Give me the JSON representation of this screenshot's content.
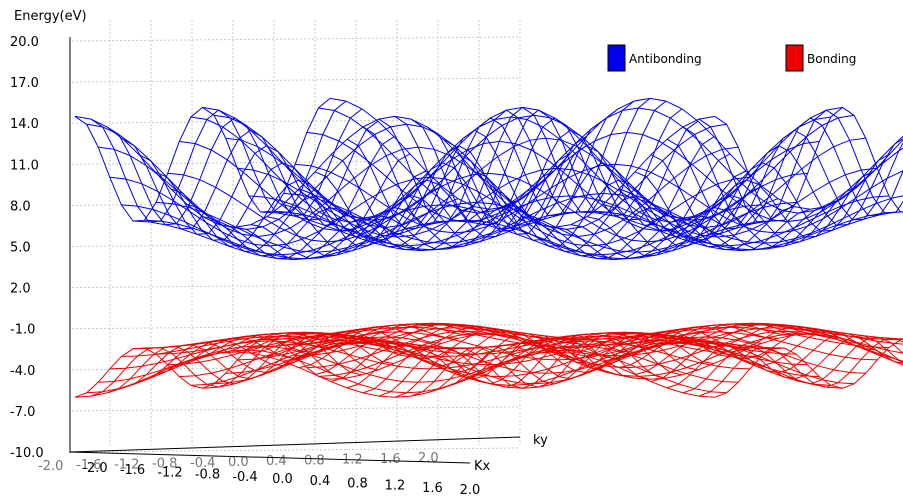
{
  "chart_data": {
    "type": "surface",
    "y_axis_title": "Energy(eV)",
    "zlim": [
      -10.0,
      20.0
    ],
    "z_ticks": [
      "20.0",
      "17.0",
      "14.0",
      "11.0",
      "8.0",
      "5.0",
      "2.0",
      "-1.0",
      "-4.0",
      "-7.0",
      "-10.0"
    ],
    "axis_kx_label": "Kx",
    "axis_ky_label": "ky",
    "kx_ticks": [
      "-2.0",
      "-1.6",
      "-1.2",
      "-0.8",
      "-0.4",
      "0.0",
      "0.4",
      "0.8",
      "1.2",
      "1.6",
      "2.0"
    ],
    "ky_ticks": [
      "-2.0",
      "-1.6",
      "-1.2",
      "-0.8",
      "-0.4",
      "0.0",
      "0.4",
      "0.8",
      "1.2",
      "1.6",
      "2.0"
    ],
    "grid": true,
    "legend_position": "top-right",
    "kx_range": [
      -2.0,
      2.0
    ],
    "ky_range": [
      -2.0,
      2.0
    ],
    "series": [
      {
        "name": "Antibonding",
        "color": "#0000ee",
        "min": 1.0,
        "max": 14.5
      },
      {
        "name": "Bonding",
        "color": "#ee0000",
        "min": -6.0,
        "max": -0.5
      }
    ]
  }
}
